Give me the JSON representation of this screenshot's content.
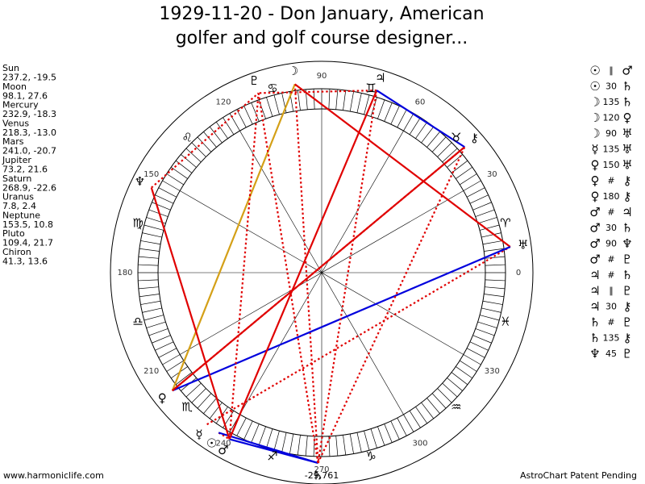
{
  "title_lines": [
    "1929-11-20 - Don January, American",
    "golfer and golf course designer..."
  ],
  "planets": [
    {
      "name": "Sun",
      "glyph": "☉",
      "position": "237.2, -19.5"
    },
    {
      "name": "Moon",
      "glyph": "☽",
      "position": "98.1, 27.6"
    },
    {
      "name": "Mercury",
      "glyph": "☿",
      "position": "232.9, -18.3"
    },
    {
      "name": "Venus",
      "glyph": "♀",
      "position": "218.3, -13.0"
    },
    {
      "name": "Mars",
      "glyph": "♂",
      "position": "241.0, -20.7"
    },
    {
      "name": "Jupiter",
      "glyph": "♃",
      "position": "73.2, 21.6"
    },
    {
      "name": "Saturn",
      "glyph": "♄",
      "position": "268.9, -22.6"
    },
    {
      "name": "Uranus",
      "glyph": "♅",
      "position": "7.8, 2.4"
    },
    {
      "name": "Neptune",
      "glyph": "♆",
      "position": "153.5, 10.8"
    },
    {
      "name": "Pluto",
      "glyph": "♇",
      "position": "109.4, 21.7"
    },
    {
      "name": "Chiron",
      "glyph": "⚷",
      "position": "41.3, 13.6"
    }
  ],
  "signs": [
    "♈",
    "♉",
    "♊",
    "♋",
    "♌",
    "♍",
    "♎",
    "♏",
    "♐",
    "♑",
    "♒",
    "♓"
  ],
  "dial_labels": [
    0,
    30,
    60,
    90,
    120,
    150,
    180,
    210,
    240,
    270,
    300,
    330
  ],
  "aspects": [
    {
      "p1": "☉",
      "aspect": "∥",
      "p2": "♂",
      "color": "#e00000",
      "line": "dotted"
    },
    {
      "p1": "☉",
      "aspect": 30,
      "p2": "♄",
      "color": "#0000dd",
      "line": "solid"
    },
    {
      "p1": "☽",
      "aspect": 135,
      "p2": "♄",
      "color": "#e00000",
      "line": "dotted"
    },
    {
      "p1": "☽",
      "aspect": 120,
      "p2": "♀",
      "color": "#d4a017",
      "line": "solid"
    },
    {
      "p1": "☽",
      "aspect": 90,
      "p2": "♅",
      "color": "#e00000",
      "line": "solid"
    },
    {
      "p1": "☿",
      "aspect": 135,
      "p2": "♅",
      "color": "#e00000",
      "line": "dotted"
    },
    {
      "p1": "♀",
      "aspect": 150,
      "p2": "♅",
      "color": "#0000dd",
      "line": "solid"
    },
    {
      "p1": "♀",
      "aspect": "#",
      "p2": "⚷",
      "color": "#e00000",
      "line": "dotted"
    },
    {
      "p1": "♀",
      "aspect": 180,
      "p2": "⚷",
      "color": "#e00000",
      "line": "solid"
    },
    {
      "p1": "♂",
      "aspect": "#",
      "p2": "♃",
      "color": "#e00000",
      "line": "solid"
    },
    {
      "p1": "♂",
      "aspect": 30,
      "p2": "♄",
      "color": "#0000dd",
      "line": "solid"
    },
    {
      "p1": "♂",
      "aspect": 90,
      "p2": "♆",
      "color": "#e00000",
      "line": "solid"
    },
    {
      "p1": "♂",
      "aspect": "#",
      "p2": "♇",
      "color": "#e00000",
      "line": "dotted"
    },
    {
      "p1": "♃",
      "aspect": "#",
      "p2": "♄",
      "color": "#e00000",
      "line": "dotted"
    },
    {
      "p1": "♃",
      "aspect": "∥",
      "p2": "♇",
      "color": "#e00000",
      "line": "dotted"
    },
    {
      "p1": "♃",
      "aspect": 30,
      "p2": "⚷",
      "color": "#0000dd",
      "line": "solid"
    },
    {
      "p1": "♄",
      "aspect": "#",
      "p2": "♇",
      "color": "#e00000",
      "line": "dotted"
    },
    {
      "p1": "♄",
      "aspect": 135,
      "p2": "⚷",
      "color": "#e00000",
      "line": "dotted"
    },
    {
      "p1": "♆",
      "aspect": 45,
      "p2": "♇",
      "color": "#e00000",
      "line": "dotted"
    }
  ],
  "footer": {
    "left": "www.harmoniclife.com",
    "center": "-29,761",
    "right": "AstroChart Patent Pending"
  }
}
